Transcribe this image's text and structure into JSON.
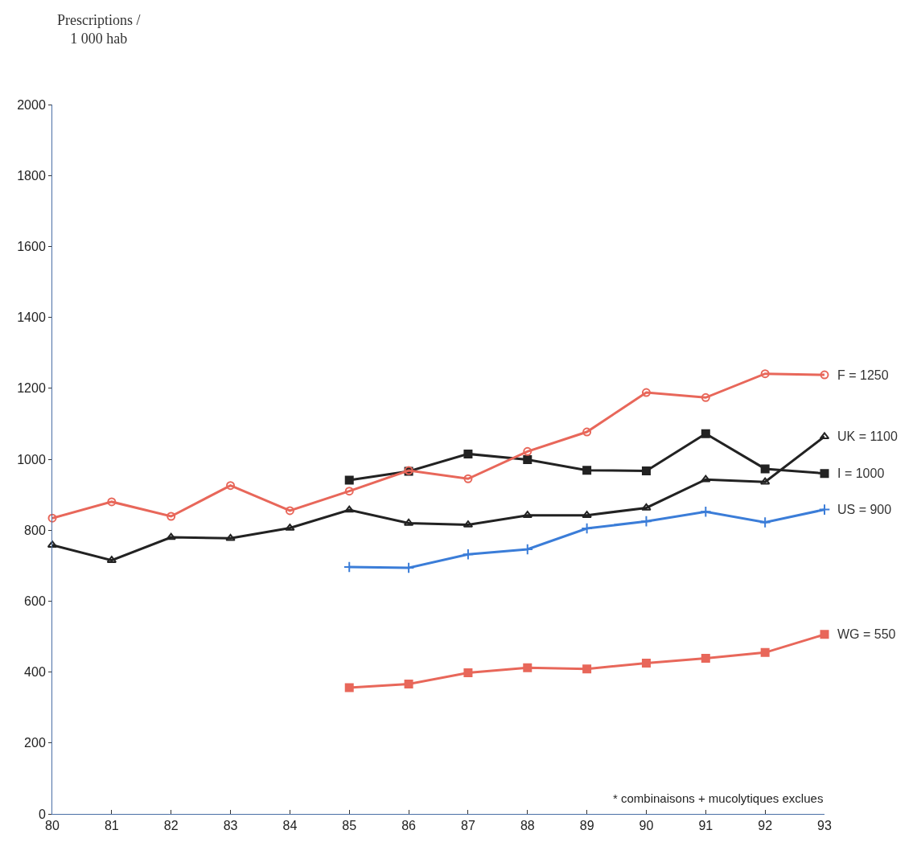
{
  "chart_data": {
    "type": "line",
    "ylabel": "Prescriptions /\n1 000 hab",
    "x": [
      80,
      81,
      82,
      83,
      84,
      85,
      86,
      87,
      88,
      89,
      90,
      91,
      92,
      93
    ],
    "xlim": [
      80,
      93
    ],
    "xticks": [
      80,
      81,
      82,
      83,
      84,
      85,
      86,
      87,
      88,
      89,
      90,
      91,
      92,
      93
    ],
    "ylim": [
      0,
      2000
    ],
    "yticks": [
      0,
      200,
      400,
      600,
      800,
      1000,
      1200,
      1400,
      1600,
      1800,
      2000
    ],
    "legend": false,
    "line_style": "solid",
    "series": [
      {
        "name": "F = 1250",
        "color": "#e8675a",
        "marker": "circle",
        "values": [
          834,
          880,
          839,
          926,
          855,
          910,
          968,
          945,
          1022,
          1077,
          1188,
          1174,
          1241,
          1238
        ]
      },
      {
        "name": "UK = 1100",
        "color": "#222222",
        "marker": "triangle",
        "values": [
          758,
          715,
          780,
          777,
          806,
          857,
          820,
          815,
          842,
          842,
          863,
          943,
          936,
          1064
        ]
      },
      {
        "name": "I = 1000",
        "color": "#222222",
        "marker": "square",
        "values": [
          null,
          null,
          null,
          null,
          null,
          941,
          966,
          1015,
          999,
          969,
          967,
          1072,
          973,
          960
        ]
      },
      {
        "name": "US = 900",
        "color": "#3b7dd8",
        "marker": "cross",
        "values": [
          null,
          null,
          null,
          null,
          null,
          696,
          694,
          732,
          746,
          805,
          825,
          852,
          822,
          858
        ]
      },
      {
        "name": "WG = 550",
        "color": "#e8675a",
        "marker": "square",
        "values": [
          null,
          null,
          null,
          null,
          null,
          356,
          366,
          398,
          412,
          409,
          425,
          439,
          455,
          506
        ]
      }
    ],
    "annotations": [
      "* combinaisons + mucolytiques exclues"
    ]
  }
}
